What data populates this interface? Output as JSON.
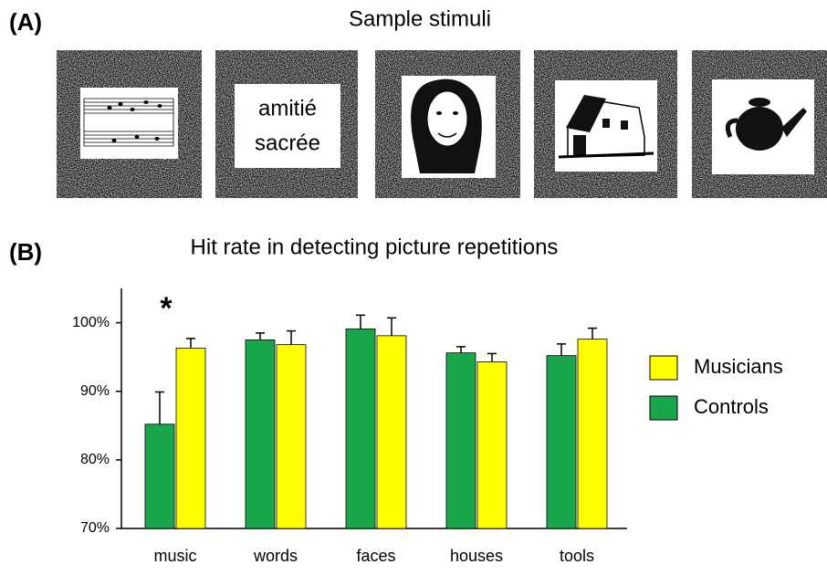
{
  "panel_a": {
    "label": "(A)",
    "title": "Sample stimuli",
    "word_stimulus": [
      "amitié",
      "sacrée"
    ]
  },
  "panel_b": {
    "label": "(B)"
  },
  "chart_data": {
    "type": "bar",
    "title": "Hit rate in detecting picture repetitions",
    "categories": [
      "music",
      "words",
      "faces",
      "houses",
      "tools"
    ],
    "series": [
      {
        "name": "Controls",
        "color": "#1aa64a",
        "values": [
          85.2,
          97.5,
          99.1,
          95.6,
          95.2
        ],
        "errors": [
          4.7,
          1.0,
          2.0,
          0.9,
          1.7
        ]
      },
      {
        "name": "Musicians",
        "color": "#ffff00",
        "values": [
          96.3,
          96.8,
          98.1,
          94.3,
          97.6
        ],
        "errors": [
          1.4,
          2.0,
          2.6,
          1.2,
          1.6
        ]
      }
    ],
    "ylim": [
      70,
      105
    ],
    "yticks": [
      {
        "value": 70,
        "label": "70%"
      },
      {
        "value": 80,
        "label": "80%"
      },
      {
        "value": 90,
        "label": "90%"
      },
      {
        "value": 100,
        "label": "100%"
      }
    ],
    "annotations": [
      "*"
    ],
    "legend": "right"
  }
}
